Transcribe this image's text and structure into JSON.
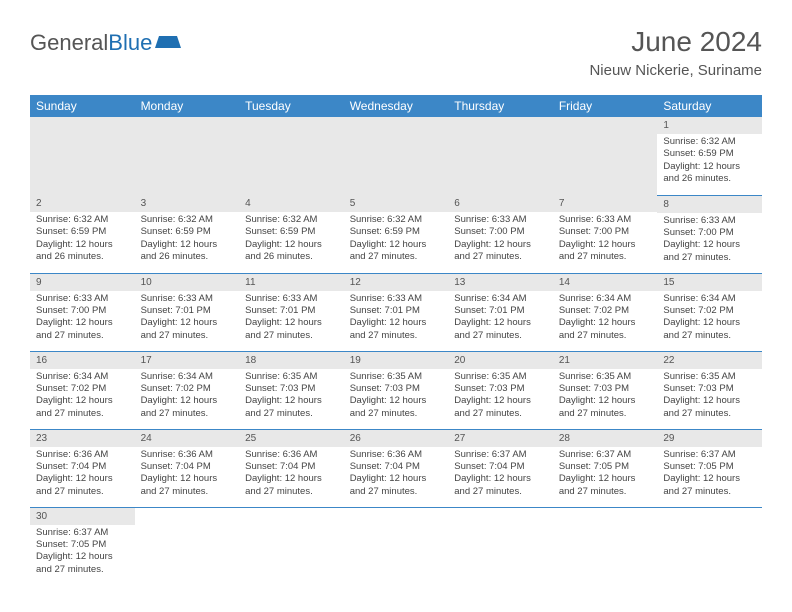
{
  "logo": {
    "text_gray": "General",
    "text_blue": "Blue"
  },
  "title": "June 2024",
  "location": "Nieuw Nickerie, Suriname",
  "colors": {
    "header_bg": "#3c87c7",
    "header_text": "#ffffff",
    "daynum_bg": "#e8e8e8",
    "cell_border": "#3c87c7",
    "body_text": "#444444",
    "title_text": "#555555",
    "logo_blue": "#1f6fb2"
  },
  "typography": {
    "title_fontsize": 28,
    "location_fontsize": 15,
    "dayheader_fontsize": 12,
    "cell_fontsize": 9.5,
    "daynum_fontsize": 10
  },
  "headers": [
    "Sunday",
    "Monday",
    "Tuesday",
    "Wednesday",
    "Thursday",
    "Friday",
    "Saturday"
  ],
  "weeks": [
    [
      null,
      null,
      null,
      null,
      null,
      null,
      {
        "n": "1",
        "sr": "6:32 AM",
        "ss": "6:59 PM",
        "dl": "12 hours and 26 minutes."
      }
    ],
    [
      {
        "n": "2",
        "sr": "6:32 AM",
        "ss": "6:59 PM",
        "dl": "12 hours and 26 minutes."
      },
      {
        "n": "3",
        "sr": "6:32 AM",
        "ss": "6:59 PM",
        "dl": "12 hours and 26 minutes."
      },
      {
        "n": "4",
        "sr": "6:32 AM",
        "ss": "6:59 PM",
        "dl": "12 hours and 26 minutes."
      },
      {
        "n": "5",
        "sr": "6:32 AM",
        "ss": "6:59 PM",
        "dl": "12 hours and 27 minutes."
      },
      {
        "n": "6",
        "sr": "6:33 AM",
        "ss": "7:00 PM",
        "dl": "12 hours and 27 minutes."
      },
      {
        "n": "7",
        "sr": "6:33 AM",
        "ss": "7:00 PM",
        "dl": "12 hours and 27 minutes."
      },
      {
        "n": "8",
        "sr": "6:33 AM",
        "ss": "7:00 PM",
        "dl": "12 hours and 27 minutes."
      }
    ],
    [
      {
        "n": "9",
        "sr": "6:33 AM",
        "ss": "7:00 PM",
        "dl": "12 hours and 27 minutes."
      },
      {
        "n": "10",
        "sr": "6:33 AM",
        "ss": "7:01 PM",
        "dl": "12 hours and 27 minutes."
      },
      {
        "n": "11",
        "sr": "6:33 AM",
        "ss": "7:01 PM",
        "dl": "12 hours and 27 minutes."
      },
      {
        "n": "12",
        "sr": "6:33 AM",
        "ss": "7:01 PM",
        "dl": "12 hours and 27 minutes."
      },
      {
        "n": "13",
        "sr": "6:34 AM",
        "ss": "7:01 PM",
        "dl": "12 hours and 27 minutes."
      },
      {
        "n": "14",
        "sr": "6:34 AM",
        "ss": "7:02 PM",
        "dl": "12 hours and 27 minutes."
      },
      {
        "n": "15",
        "sr": "6:34 AM",
        "ss": "7:02 PM",
        "dl": "12 hours and 27 minutes."
      }
    ],
    [
      {
        "n": "16",
        "sr": "6:34 AM",
        "ss": "7:02 PM",
        "dl": "12 hours and 27 minutes."
      },
      {
        "n": "17",
        "sr": "6:34 AM",
        "ss": "7:02 PM",
        "dl": "12 hours and 27 minutes."
      },
      {
        "n": "18",
        "sr": "6:35 AM",
        "ss": "7:03 PM",
        "dl": "12 hours and 27 minutes."
      },
      {
        "n": "19",
        "sr": "6:35 AM",
        "ss": "7:03 PM",
        "dl": "12 hours and 27 minutes."
      },
      {
        "n": "20",
        "sr": "6:35 AM",
        "ss": "7:03 PM",
        "dl": "12 hours and 27 minutes."
      },
      {
        "n": "21",
        "sr": "6:35 AM",
        "ss": "7:03 PM",
        "dl": "12 hours and 27 minutes."
      },
      {
        "n": "22",
        "sr": "6:35 AM",
        "ss": "7:03 PM",
        "dl": "12 hours and 27 minutes."
      }
    ],
    [
      {
        "n": "23",
        "sr": "6:36 AM",
        "ss": "7:04 PM",
        "dl": "12 hours and 27 minutes."
      },
      {
        "n": "24",
        "sr": "6:36 AM",
        "ss": "7:04 PM",
        "dl": "12 hours and 27 minutes."
      },
      {
        "n": "25",
        "sr": "6:36 AM",
        "ss": "7:04 PM",
        "dl": "12 hours and 27 minutes."
      },
      {
        "n": "26",
        "sr": "6:36 AM",
        "ss": "7:04 PM",
        "dl": "12 hours and 27 minutes."
      },
      {
        "n": "27",
        "sr": "6:37 AM",
        "ss": "7:04 PM",
        "dl": "12 hours and 27 minutes."
      },
      {
        "n": "28",
        "sr": "6:37 AM",
        "ss": "7:05 PM",
        "dl": "12 hours and 27 minutes."
      },
      {
        "n": "29",
        "sr": "6:37 AM",
        "ss": "7:05 PM",
        "dl": "12 hours and 27 minutes."
      }
    ],
    [
      {
        "n": "30",
        "sr": "6:37 AM",
        "ss": "7:05 PM",
        "dl": "12 hours and 27 minutes."
      },
      null,
      null,
      null,
      null,
      null,
      null
    ]
  ],
  "labels": {
    "sunrise": "Sunrise:",
    "sunset": "Sunset:",
    "daylight": "Daylight:"
  }
}
